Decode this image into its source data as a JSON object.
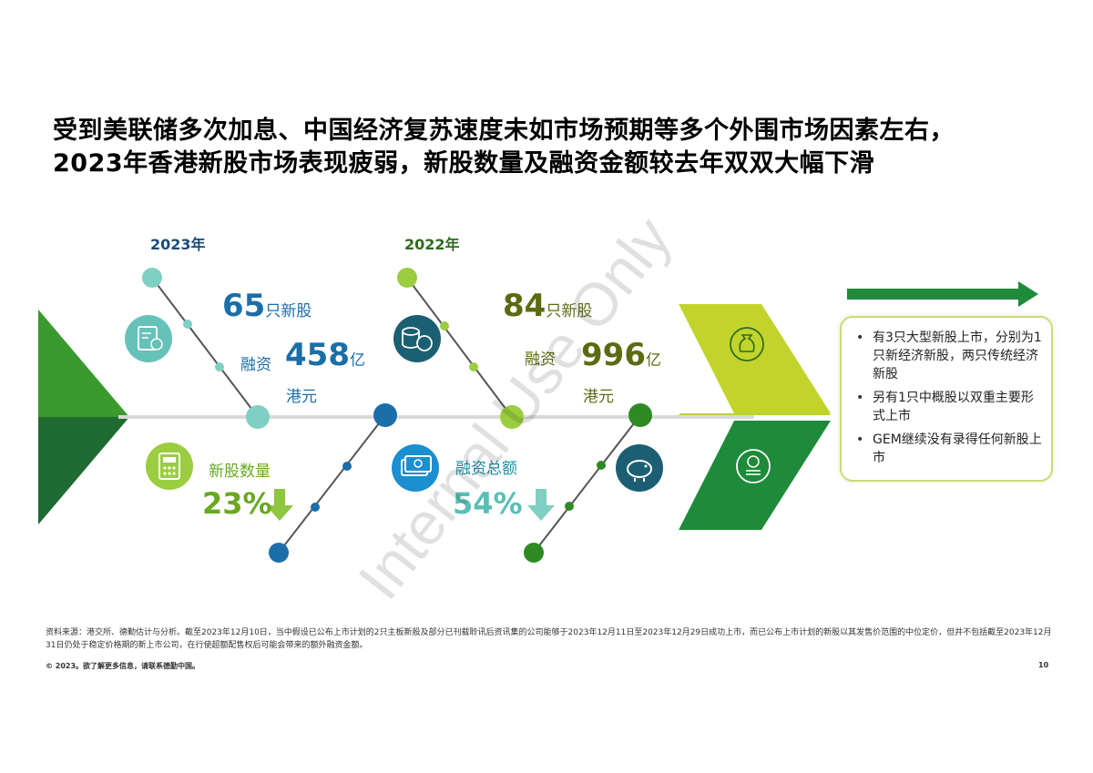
{
  "title": {
    "line1": "受到美联储多次加息、中国经济复苏速度未如市场预期等多个外围市场因素左右，",
    "line2": "2023年香港新股市场表现疲弱，新股数量及融资金额较去年双双大幅下滑"
  },
  "y2023": {
    "label": "2023年",
    "ipo_count": "65",
    "ipo_unit": "只新股",
    "fund_label": "融资",
    "fund_value": "458",
    "fund_unit": "亿",
    "fund_currency": "港元"
  },
  "y2022": {
    "label": "2022年",
    "ipo_count": "84",
    "ipo_unit": "只新股",
    "fund_label": "融资",
    "fund_value": "996",
    "fund_unit": "亿",
    "fund_currency": "港元"
  },
  "change": {
    "count_label": "新股数量",
    "count_pct": "23%",
    "amount_label": "融资总额",
    "amount_pct": "54%"
  },
  "notes": [
    "有3只大型新股上市，分别为1只新经济新股，两只传统经济新股",
    "另有1只中概股以双重主要形式上市",
    "GEM继续没有录得任何新股上市"
  ],
  "footer": {
    "source": "资料来源：港交所、德勤估计与分析。截至2023年12月10日，当中假设已公布上市计划的2只主板新股及部分已刊载聆讯后资讯集的公司能够于2023年12月11日至2023年12月29日成功上市，而已公布上市计划的新股以其发售价范围的中位定价，但并不包括截至2023年12月31日仍处于稳定价格期的新上市公司，在行使超额配售权后可能会带来的额外融资金额。",
    "copyright": "© 2023。欲了解更多信息，请联系德勤中国。",
    "page": "10"
  },
  "watermark": "Internal Use Only",
  "colors": {
    "dark_green": "#1e7d32",
    "light_green": "#8dc63f",
    "lime": "#bfd22b",
    "blue": "#1b6ea8",
    "teal": "#5bbfb5"
  },
  "icons": [
    "document-coin-icon",
    "coins-icon",
    "calculator-icon",
    "banknote-icon",
    "piggy-bank-icon",
    "money-bag-icon",
    "coin-stack-icon",
    "down-arrow-icon",
    "right-arrow-icon"
  ]
}
